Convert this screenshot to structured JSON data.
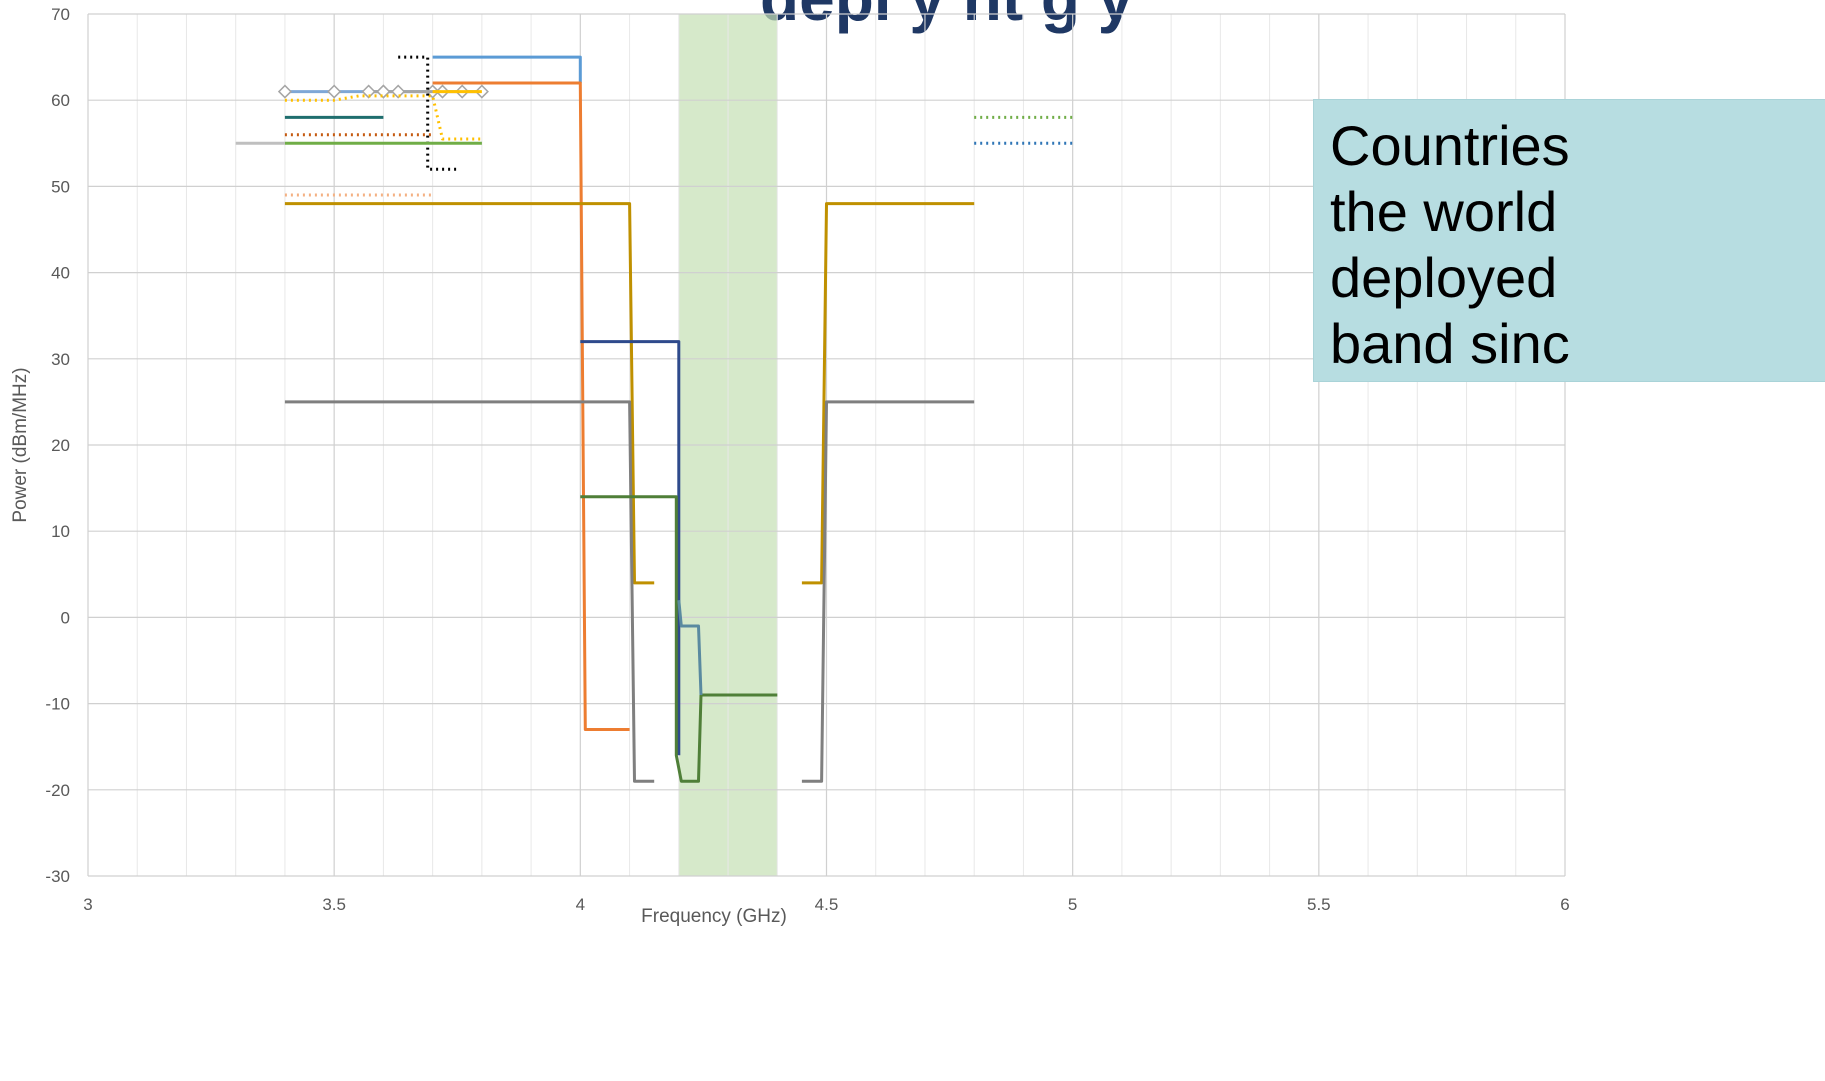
{
  "colors": {
    "band_highlight": "#c5e0b4",
    "grid_major": "#d0d0d0",
    "grid_minor": "#e8e8e8",
    "axis_text": "#595959",
    "heading": "#1f3864",
    "callout_bg": "#b7dde1"
  },
  "heading_fragment": "depl y   nt  g    y",
  "callout": {
    "lines": [
      "Countries",
      "the world",
      "deployed",
      "band sinc"
    ]
  },
  "chart_data": {
    "type": "line",
    "xlabel": "Frequency (GHz)",
    "ylabel": "Power (dBm/MHz)",
    "xlim": [
      3,
      6
    ],
    "ylim": [
      -30,
      70
    ],
    "x_ticks": [
      3,
      3.5,
      4,
      4.5,
      5,
      5.5,
      6
    ],
    "x_tick_labels": [
      "3",
      "3.5",
      "4",
      "4.5",
      "5",
      "5.5",
      "6"
    ],
    "y_ticks": [
      -30,
      -20,
      -10,
      0,
      10,
      20,
      30,
      40,
      50,
      60,
      70
    ],
    "y_tick_labels": [
      "-30",
      "-20",
      "-10",
      "0",
      "10",
      "20",
      "30",
      "40",
      "50",
      "60",
      "70"
    ],
    "grid": true,
    "legend": "none",
    "highlight_band": {
      "x": [
        4.2,
        4.4
      ]
    },
    "series": [
      {
        "color": "#5b9bd5",
        "style": "solid",
        "points": [
          [
            3.7,
            65
          ],
          [
            4.0,
            65
          ],
          [
            4.0,
            62
          ]
        ]
      },
      {
        "color": "#ed7d31",
        "style": "solid",
        "points": [
          [
            3.7,
            62
          ],
          [
            4.0,
            62
          ],
          [
            4.01,
            -13
          ],
          [
            4.1,
            -13
          ]
        ]
      },
      {
        "color": "#bf9000",
        "style": "solid",
        "points": [
          [
            3.4,
            48
          ],
          [
            4.1,
            48
          ],
          [
            4.11,
            4
          ],
          [
            4.15,
            4
          ]
        ]
      },
      {
        "color": "#bf9000",
        "style": "solid",
        "points": [
          [
            4.45,
            4
          ],
          [
            4.49,
            4
          ],
          [
            4.5,
            48
          ],
          [
            4.8,
            48
          ]
        ]
      },
      {
        "color": "#7f7f7f",
        "style": "solid",
        "points": [
          [
            3.4,
            25
          ],
          [
            4.1,
            25
          ],
          [
            4.11,
            -19
          ],
          [
            4.15,
            -19
          ]
        ]
      },
      {
        "color": "#7f7f7f",
        "style": "solid",
        "points": [
          [
            4.45,
            -19
          ],
          [
            4.49,
            -19
          ],
          [
            4.5,
            25
          ],
          [
            4.8,
            25
          ]
        ]
      },
      {
        "color": "#2e4a8c",
        "style": "solid",
        "points": [
          [
            4.0,
            32
          ],
          [
            4.2,
            32
          ],
          [
            4.2,
            -16
          ]
        ]
      },
      {
        "color": "#4f7f38",
        "style": "solid",
        "points": [
          [
            4.0,
            14
          ],
          [
            4.195,
            14
          ],
          [
            4.195,
            -16
          ],
          [
            4.205,
            -19
          ],
          [
            4.24,
            -19
          ],
          [
            4.245,
            -9
          ],
          [
            4.4,
            -9
          ]
        ]
      },
      {
        "color": "#5a8aa0",
        "style": "solid",
        "points": [
          [
            4.2,
            2
          ],
          [
            4.205,
            -1
          ],
          [
            4.24,
            -1
          ],
          [
            4.245,
            -9
          ]
        ]
      },
      {
        "color": "#7fa7d6",
        "style": "solid",
        "marker": "diamond",
        "points": [
          [
            3.4,
            61
          ],
          [
            3.5,
            61
          ],
          [
            3.6,
            61
          ],
          [
            3.7,
            61
          ]
        ]
      },
      {
        "color": "#a5a5a5",
        "style": "solid",
        "marker": "diamond",
        "points": [
          [
            3.57,
            61
          ],
          [
            3.6,
            61
          ],
          [
            3.63,
            61
          ],
          [
            3.72,
            61
          ],
          [
            3.76,
            61
          ],
          [
            3.8,
            61
          ]
        ]
      },
      {
        "color": "#ffc000",
        "style": "solid",
        "points": [
          [
            3.7,
            61
          ],
          [
            3.8,
            61
          ]
        ]
      },
      {
        "color": "#ffc000",
        "style": "dotted",
        "points": [
          [
            3.4,
            60
          ],
          [
            3.5,
            60
          ],
          [
            3.55,
            60.5
          ],
          [
            3.7,
            60.5
          ],
          [
            3.72,
            55.5
          ],
          [
            3.8,
            55.5
          ]
        ]
      },
      {
        "color": "#000000",
        "style": "dotted",
        "points": [
          [
            3.63,
            65
          ],
          [
            3.69,
            65
          ],
          [
            3.69,
            52
          ],
          [
            3.75,
            52
          ]
        ]
      },
      {
        "color": "#1f6e6e",
        "style": "solid",
        "points": [
          [
            3.4,
            58
          ],
          [
            3.6,
            58
          ]
        ]
      },
      {
        "color": "#c55a11",
        "style": "dotted",
        "points": [
          [
            3.4,
            56
          ],
          [
            3.7,
            56
          ]
        ]
      },
      {
        "color": "#70ad47",
        "style": "solid",
        "points": [
          [
            3.4,
            55
          ],
          [
            3.8,
            55
          ]
        ]
      },
      {
        "color": "#bfbfbf",
        "style": "solid",
        "points": [
          [
            3.3,
            55
          ],
          [
            3.4,
            55
          ]
        ]
      },
      {
        "color": "#f4b183",
        "style": "dotted",
        "points": [
          [
            3.4,
            49
          ],
          [
            3.7,
            49
          ]
        ]
      },
      {
        "color": "#70ad47",
        "style": "dotted",
        "points": [
          [
            4.8,
            58
          ],
          [
            5.0,
            58
          ]
        ]
      },
      {
        "color": "#2e75b6",
        "style": "dotted",
        "points": [
          [
            4.8,
            55
          ],
          [
            5.0,
            55
          ]
        ]
      }
    ]
  }
}
